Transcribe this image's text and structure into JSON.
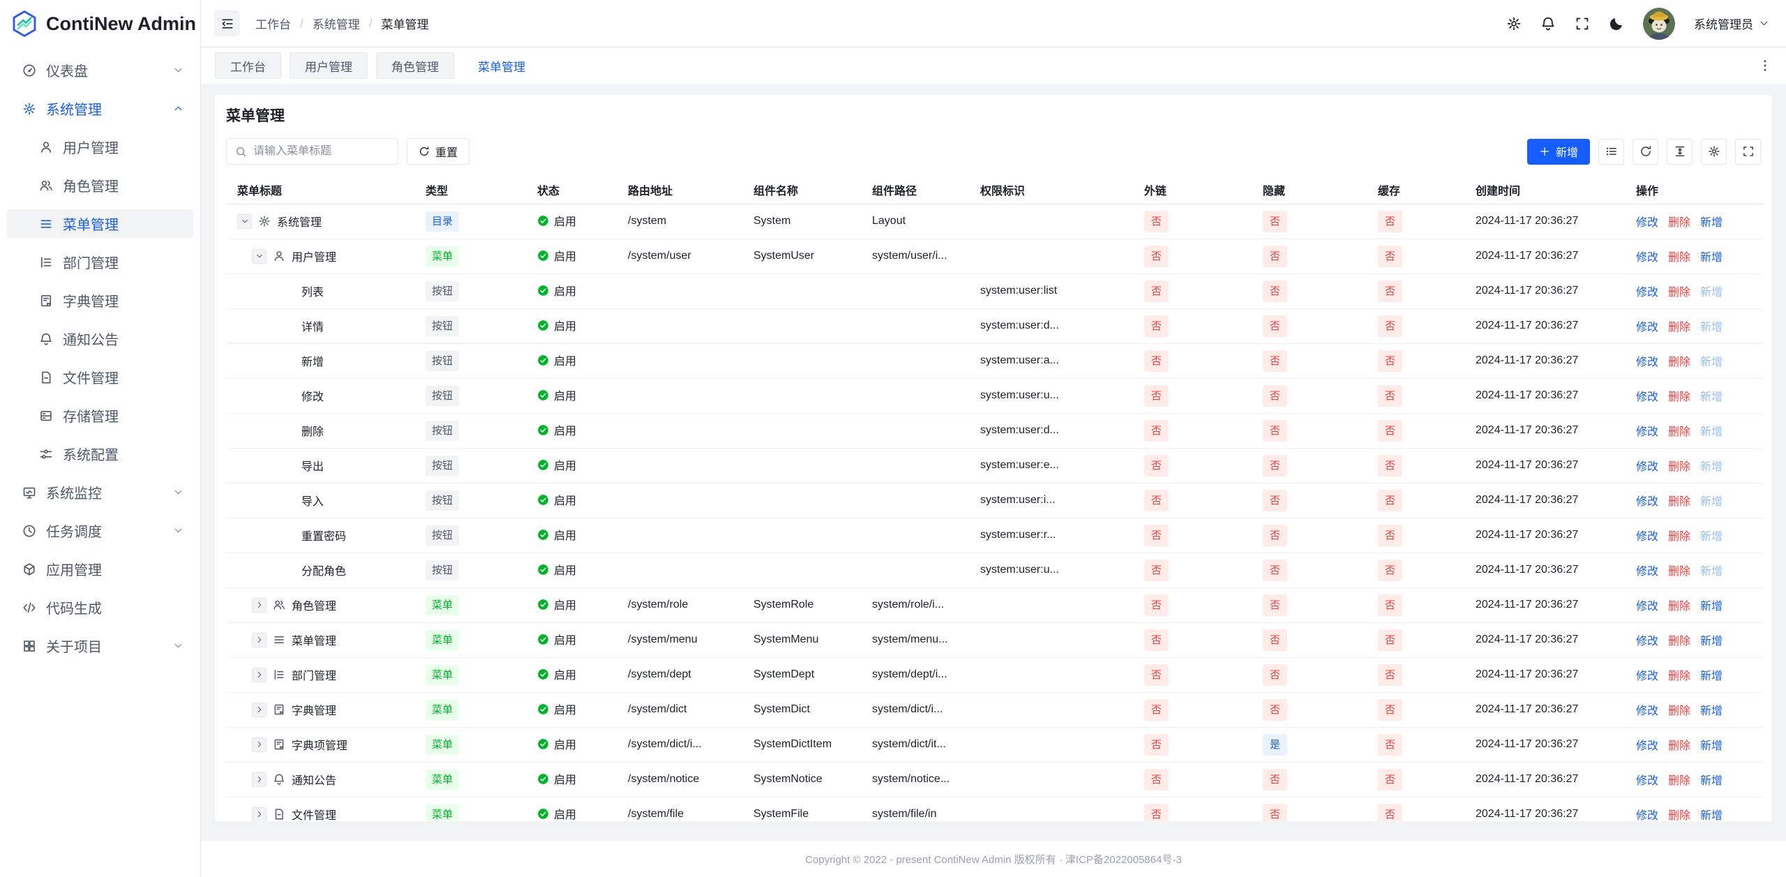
{
  "app": {
    "name": "ContiNew Admin"
  },
  "colors": {
    "primary": "#165dff",
    "success": "#00b42a",
    "danger": "#f53f3f",
    "tag_blue_bg": "#e8f3ff",
    "tag_green_bg": "#e8ffea",
    "tag_gray_bg": "#f2f3f5",
    "tag_red_bg": "#ffece8",
    "content_bg": "#f2f3f5"
  },
  "sidebar": {
    "items": [
      {
        "id": "dashboard",
        "label": "仪表盘",
        "icon": "dashboard",
        "level": 0,
        "chevron": "down"
      },
      {
        "id": "system-management",
        "label": "系统管理",
        "icon": "gear",
        "level": 0,
        "chevron": "up",
        "parent_active": true
      },
      {
        "id": "user-management",
        "label": "用户管理",
        "icon": "user",
        "level": 1
      },
      {
        "id": "role-management",
        "label": "角色管理",
        "icon": "users",
        "level": 1
      },
      {
        "id": "menu-management",
        "label": "菜单管理",
        "icon": "menu",
        "level": 1,
        "active": true
      },
      {
        "id": "dept-management",
        "label": "部门管理",
        "icon": "tree",
        "level": 1
      },
      {
        "id": "dict-management",
        "label": "字典管理",
        "icon": "dict",
        "level": 1
      },
      {
        "id": "notice",
        "label": "通知公告",
        "icon": "bell",
        "level": 1
      },
      {
        "id": "file-management",
        "label": "文件管理",
        "icon": "file",
        "level": 1
      },
      {
        "id": "storage-management",
        "label": "存储管理",
        "icon": "storage",
        "level": 1
      },
      {
        "id": "system-config",
        "label": "系统配置",
        "icon": "sliders",
        "level": 1
      },
      {
        "id": "system-monitor",
        "label": "系统监控",
        "icon": "monitor",
        "level": 0,
        "chevron": "down"
      },
      {
        "id": "task-schedule",
        "label": "任务调度",
        "icon": "clock",
        "level": 0,
        "chevron": "down"
      },
      {
        "id": "app-management",
        "label": "应用管理",
        "icon": "cube",
        "level": 0
      },
      {
        "id": "code-generation",
        "label": "代码生成",
        "icon": "code",
        "level": 0
      },
      {
        "id": "about-project",
        "label": "关于项目",
        "icon": "grid",
        "level": 0,
        "chevron": "down"
      }
    ]
  },
  "topbar": {
    "breadcrumb": [
      "工作台",
      "系统管理",
      "菜单管理"
    ],
    "icons": [
      {
        "id": "settings",
        "icon": "gear"
      },
      {
        "id": "notification",
        "icon": "bell"
      },
      {
        "id": "fullscreen",
        "icon": "fullscreen"
      },
      {
        "id": "dark-mode",
        "icon": "moon"
      }
    ],
    "user_name": "系统管理员"
  },
  "tabs": {
    "items": [
      {
        "id": "workbench",
        "label": "工作台",
        "active": false
      },
      {
        "id": "user-management",
        "label": "用户管理",
        "active": false
      },
      {
        "id": "role-management",
        "label": "角色管理",
        "active": false
      },
      {
        "id": "menu-management",
        "label": "菜单管理",
        "active": true
      }
    ]
  },
  "page": {
    "title": "菜单管理",
    "search_placeholder": "请输入菜单标题",
    "reset_label": "重置",
    "add_label": "新增",
    "tool_buttons": [
      {
        "id": "list-view",
        "icon": "list"
      },
      {
        "id": "refresh",
        "icon": "refresh"
      },
      {
        "id": "row-height",
        "icon": "lineheight"
      },
      {
        "id": "column-setting",
        "icon": "gear"
      },
      {
        "id": "table-fullscreen",
        "icon": "fullscreen"
      }
    ]
  },
  "table": {
    "columns": [
      "菜单标题",
      "类型",
      "状态",
      "路由地址",
      "组件名称",
      "组件路径",
      "权限标识",
      "外链",
      "隐藏",
      "缓存",
      "创建时间",
      "操作"
    ],
    "ops": {
      "edit": "修改",
      "del": "删除",
      "add": "新增"
    },
    "rows": [
      {
        "indent": 0,
        "expand": "down",
        "icon": "gear",
        "title": "系统管理",
        "type": "目录",
        "type_key": "dir",
        "status": "启用",
        "route": "/system",
        "comp_name": "System",
        "comp_path": "Layout",
        "permission": "",
        "external": "否",
        "hidden": "否",
        "cache": "否",
        "created": "2024-11-17 20:36:27",
        "add_disabled": false
      },
      {
        "indent": 1,
        "expand": "down",
        "icon": "user",
        "title": "用户管理",
        "type": "菜单",
        "type_key": "menu",
        "status": "启用",
        "route": "/system/user",
        "comp_name": "SystemUser",
        "comp_path": "system/user/i...",
        "permission": "",
        "external": "否",
        "hidden": "否",
        "cache": "否",
        "created": "2024-11-17 20:36:27",
        "add_disabled": false
      },
      {
        "indent": 2,
        "expand": "",
        "icon": "",
        "title": "列表",
        "type": "按钮",
        "type_key": "btn",
        "status": "启用",
        "route": "",
        "comp_name": "",
        "comp_path": "",
        "permission": "system:user:list",
        "external": "否",
        "hidden": "否",
        "cache": "否",
        "created": "2024-11-17 20:36:27",
        "add_disabled": true
      },
      {
        "indent": 2,
        "expand": "",
        "icon": "",
        "title": "详情",
        "type": "按钮",
        "type_key": "btn",
        "status": "启用",
        "route": "",
        "comp_name": "",
        "comp_path": "",
        "permission": "system:user:d...",
        "external": "否",
        "hidden": "否",
        "cache": "否",
        "created": "2024-11-17 20:36:27",
        "add_disabled": true
      },
      {
        "indent": 2,
        "expand": "",
        "icon": "",
        "title": "新增",
        "type": "按钮",
        "type_key": "btn",
        "status": "启用",
        "route": "",
        "comp_name": "",
        "comp_path": "",
        "permission": "system:user:a...",
        "external": "否",
        "hidden": "否",
        "cache": "否",
        "created": "2024-11-17 20:36:27",
        "add_disabled": true
      },
      {
        "indent": 2,
        "expand": "",
        "icon": "",
        "title": "修改",
        "type": "按钮",
        "type_key": "btn",
        "status": "启用",
        "route": "",
        "comp_name": "",
        "comp_path": "",
        "permission": "system:user:u...",
        "external": "否",
        "hidden": "否",
        "cache": "否",
        "created": "2024-11-17 20:36:27",
        "add_disabled": true
      },
      {
        "indent": 2,
        "expand": "",
        "icon": "",
        "title": "删除",
        "type": "按钮",
        "type_key": "btn",
        "status": "启用",
        "route": "",
        "comp_name": "",
        "comp_path": "",
        "permission": "system:user:d...",
        "external": "否",
        "hidden": "否",
        "cache": "否",
        "created": "2024-11-17 20:36:27",
        "add_disabled": true
      },
      {
        "indent": 2,
        "expand": "",
        "icon": "",
        "title": "导出",
        "type": "按钮",
        "type_key": "btn",
        "status": "启用",
        "route": "",
        "comp_name": "",
        "comp_path": "",
        "permission": "system:user:e...",
        "external": "否",
        "hidden": "否",
        "cache": "否",
        "created": "2024-11-17 20:36:27",
        "add_disabled": true
      },
      {
        "indent": 2,
        "expand": "",
        "icon": "",
        "title": "导入",
        "type": "按钮",
        "type_key": "btn",
        "status": "启用",
        "route": "",
        "comp_name": "",
        "comp_path": "",
        "permission": "system:user:i...",
        "external": "否",
        "hidden": "否",
        "cache": "否",
        "created": "2024-11-17 20:36:27",
        "add_disabled": true
      },
      {
        "indent": 2,
        "expand": "",
        "icon": "",
        "title": "重置密码",
        "type": "按钮",
        "type_key": "btn",
        "status": "启用",
        "route": "",
        "comp_name": "",
        "comp_path": "",
        "permission": "system:user:r...",
        "external": "否",
        "hidden": "否",
        "cache": "否",
        "created": "2024-11-17 20:36:27",
        "add_disabled": true
      },
      {
        "indent": 2,
        "expand": "",
        "icon": "",
        "title": "分配角色",
        "type": "按钮",
        "type_key": "btn",
        "status": "启用",
        "route": "",
        "comp_name": "",
        "comp_path": "",
        "permission": "system:user:u...",
        "external": "否",
        "hidden": "否",
        "cache": "否",
        "created": "2024-11-17 20:36:27",
        "add_disabled": true
      },
      {
        "indent": 1,
        "expand": "right",
        "icon": "users",
        "title": "角色管理",
        "type": "菜单",
        "type_key": "menu",
        "status": "启用",
        "route": "/system/role",
        "comp_name": "SystemRole",
        "comp_path": "system/role/i...",
        "permission": "",
        "external": "否",
        "hidden": "否",
        "cache": "否",
        "created": "2024-11-17 20:36:27",
        "add_disabled": false
      },
      {
        "indent": 1,
        "expand": "right",
        "icon": "menu",
        "title": "菜单管理",
        "type": "菜单",
        "type_key": "menu",
        "status": "启用",
        "route": "/system/menu",
        "comp_name": "SystemMenu",
        "comp_path": "system/menu...",
        "permission": "",
        "external": "否",
        "hidden": "否",
        "cache": "否",
        "created": "2024-11-17 20:36:27",
        "add_disabled": false
      },
      {
        "indent": 1,
        "expand": "right",
        "icon": "tree",
        "title": "部门管理",
        "type": "菜单",
        "type_key": "menu",
        "status": "启用",
        "route": "/system/dept",
        "comp_name": "SystemDept",
        "comp_path": "system/dept/i...",
        "permission": "",
        "external": "否",
        "hidden": "否",
        "cache": "否",
        "created": "2024-11-17 20:36:27",
        "add_disabled": false
      },
      {
        "indent": 1,
        "expand": "right",
        "icon": "dict",
        "title": "字典管理",
        "type": "菜单",
        "type_key": "menu",
        "status": "启用",
        "route": "/system/dict",
        "comp_name": "SystemDict",
        "comp_path": "system/dict/i...",
        "permission": "",
        "external": "否",
        "hidden": "否",
        "cache": "否",
        "created": "2024-11-17 20:36:27",
        "add_disabled": false
      },
      {
        "indent": 1,
        "expand": "right",
        "icon": "dict",
        "title": "字典项管理",
        "type": "菜单",
        "type_key": "menu",
        "status": "启用",
        "route": "/system/dict/i...",
        "comp_name": "SystemDictItem",
        "comp_path": "system/dict/it...",
        "permission": "",
        "external": "否",
        "hidden": "是",
        "cache": "否",
        "created": "2024-11-17 20:36:27",
        "add_disabled": false
      },
      {
        "indent": 1,
        "expand": "right",
        "icon": "bell",
        "title": "通知公告",
        "type": "菜单",
        "type_key": "menu",
        "status": "启用",
        "route": "/system/notice",
        "comp_name": "SystemNotice",
        "comp_path": "system/notice...",
        "permission": "",
        "external": "否",
        "hidden": "否",
        "cache": "否",
        "created": "2024-11-17 20:36:27",
        "add_disabled": false
      },
      {
        "indent": 1,
        "expand": "right",
        "icon": "file",
        "title": "文件管理",
        "type": "菜单",
        "type_key": "menu",
        "status": "启用",
        "route": "/system/file",
        "comp_name": "SystemFile",
        "comp_path": "system/file/in",
        "permission": "",
        "external": "否",
        "hidden": "否",
        "cache": "否",
        "created": "2024-11-17 20:36:27",
        "add_disabled": false
      }
    ]
  },
  "footer": {
    "copyright": "Copyright © 2022 - present ContiNew Admin 版权所有 · 津ICP备2022005864号-3"
  }
}
